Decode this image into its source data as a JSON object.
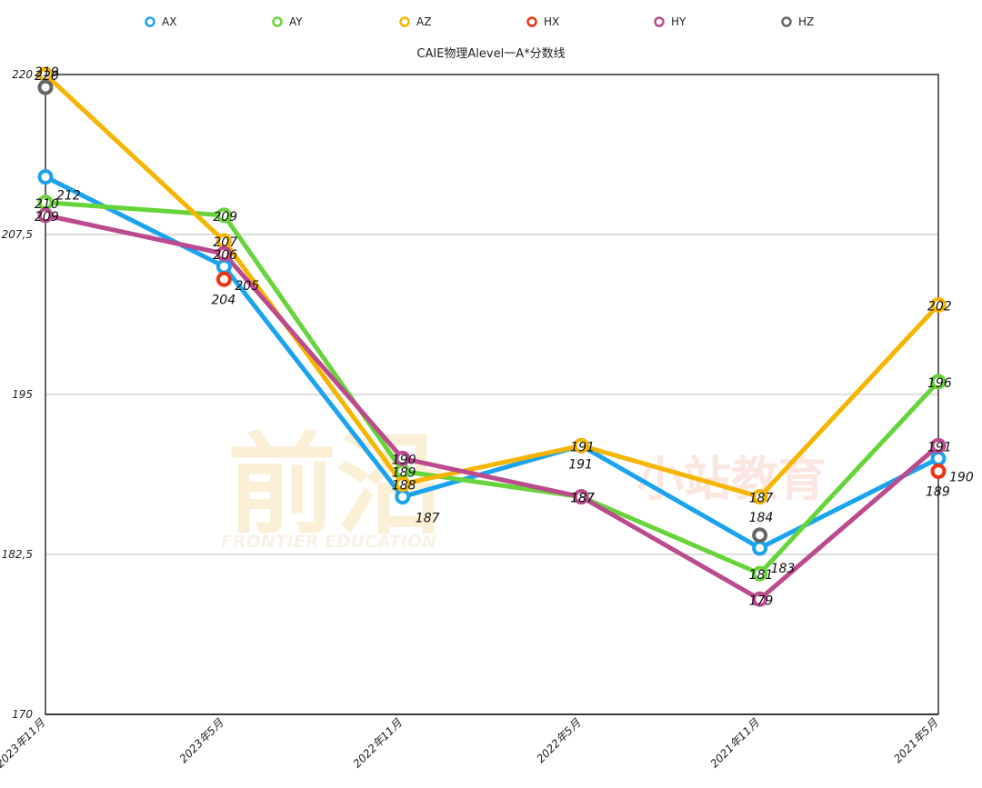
{
  "chart_data": {
    "type": "line",
    "title": "CAIE物理Alevel一A*分数线",
    "categories": [
      "2023年11月",
      "2023年5月",
      "2022年11月",
      "2022年5月",
      "2021年11月",
      "2021年5月"
    ],
    "ylim": [
      170,
      220
    ],
    "yticks": [
      "170",
      "182,5",
      "195",
      "207,5",
      "220"
    ],
    "ytick_values": [
      170,
      182.5,
      195,
      207.5,
      220
    ],
    "grid": "horizontal",
    "legend_position": "top",
    "series": [
      {
        "name": "AX",
        "color": "#1aa3ee",
        "values": [
          212,
          205,
          187,
          191,
          183,
          190
        ],
        "labels": [
          "212",
          "205",
          "187",
          "191",
          "183",
          "190"
        ]
      },
      {
        "name": "AY",
        "color": "#66d43a",
        "values": [
          210,
          209,
          189,
          187,
          181,
          196
        ],
        "labels": [
          "210",
          "209",
          "189",
          "187",
          "181",
          "196"
        ]
      },
      {
        "name": "AZ",
        "color": "#f5b500",
        "values": [
          220,
          207,
          188,
          191,
          187,
          202
        ],
        "labels": [
          "220",
          "207",
          "188",
          "191",
          "187",
          "202"
        ]
      },
      {
        "name": "HX",
        "color": "#ee3311",
        "values": [
          null,
          204,
          null,
          null,
          null,
          189
        ],
        "labels": [
          "",
          "204",
          "",
          "",
          "",
          "189"
        ]
      },
      {
        "name": "HY",
        "color": "#bb4a8e",
        "values": [
          209,
          206,
          190,
          187,
          179,
          191
        ],
        "labels": [
          "209",
          "206",
          "190",
          "187",
          "179",
          "191"
        ]
      },
      {
        "name": "HZ",
        "color": "#666666",
        "values": [
          219,
          null,
          null,
          null,
          184,
          null
        ],
        "labels": [
          "219",
          "",
          "",
          "",
          "184",
          ""
        ]
      }
    ]
  },
  "watermark": {
    "main": "前沿",
    "sub": "FRONTIER EDUCATION",
    "right": "小站教育"
  }
}
